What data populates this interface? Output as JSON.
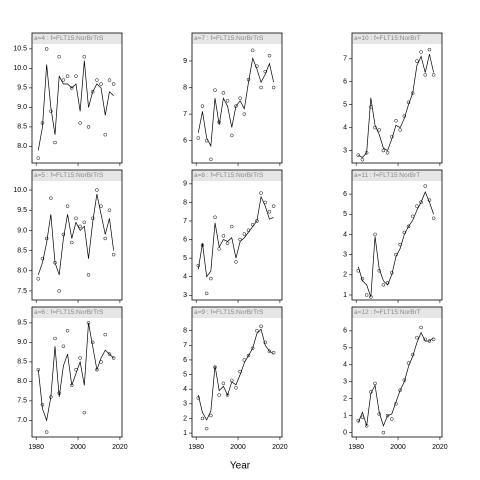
{
  "chart_data": {
    "type": "scatter",
    "xlabel": "Year",
    "xlim": [
      1978,
      2021
    ],
    "xticks": [
      1980,
      2000,
      2020
    ],
    "x": [
      1981,
      1983,
      1985,
      1987,
      1989,
      1991,
      1993,
      1995,
      1997,
      1999,
      2001,
      2003,
      2005,
      2007,
      2009,
      2011,
      2013,
      2015,
      2017
    ],
    "point_color": "#000000",
    "line_color": "#000000",
    "panels": [
      {
        "title": "a=4 : f=FLT15:NorBrTrS",
        "ylim": [
          7.6,
          10.6
        ],
        "yticks": [
          {
            "value": 8,
            "label": "8.0"
          },
          {
            "value": 8.5,
            "label": "8.5"
          },
          {
            "value": 9,
            "label": "9.0"
          },
          {
            "value": 9.5,
            "label": "9.5"
          },
          {
            "value": 10,
            "label": "10.0"
          },
          {
            "value": 10.5,
            "label": "10.5"
          }
        ],
        "points": [
          7.7,
          8.6,
          10.5,
          8.9,
          8.1,
          10.3,
          9.7,
          9.8,
          9.5,
          9.8,
          8.6,
          10.3,
          8.5,
          9.4,
          9.7,
          9.6,
          8.3,
          9.7,
          9.6
        ],
        "line": [
          7.9,
          8.5,
          10.1,
          9.0,
          8.3,
          9.8,
          9.6,
          9.6,
          9.5,
          9.6,
          8.9,
          10.2,
          9.0,
          9.4,
          9.6,
          9.5,
          8.8,
          9.4,
          9.3
        ]
      },
      {
        "title": "a=7 : f=FLT15:NorBrTrS",
        "ylim": [
          5.2,
          9.6
        ],
        "yticks": [
          6,
          7,
          8,
          9
        ],
        "points": [
          6.1,
          7.3,
          6.0,
          5.3,
          7.9,
          6.7,
          7.8,
          7.5,
          6.2,
          7.3,
          7.6,
          7.0,
          8.3,
          9.4,
          8.8,
          8.0,
          8.6,
          9.2,
          8.0
        ],
        "line": [
          6.3,
          7.1,
          6.1,
          5.8,
          7.6,
          6.6,
          7.6,
          7.3,
          6.5,
          7.3,
          7.5,
          7.2,
          8.2,
          9.1,
          8.7,
          8.2,
          8.5,
          8.9,
          8.2
        ]
      },
      {
        "title": "a=10 : f=FLT15:NorBrT",
        "ylim": [
          2.5,
          7.6
        ],
        "yticks": [
          3,
          4,
          5,
          6,
          7
        ],
        "points": [
          2.8,
          2.6,
          2.9,
          4.9,
          4.0,
          3.9,
          3.0,
          2.9,
          3.6,
          4.3,
          3.9,
          4.5,
          5.1,
          5.5,
          6.9,
          7.3,
          6.3,
          7.4,
          6.3
        ],
        "line": [
          2.8,
          2.7,
          2.9,
          5.3,
          4.1,
          3.7,
          3.1,
          3.0,
          3.5,
          4.1,
          4.0,
          4.4,
          5.0,
          5.5,
          6.7,
          7.1,
          6.4,
          7.2,
          6.4
        ]
      },
      {
        "title": "a=5 : f=FLT15:NorBrTrS",
        "ylim": [
          7.3,
          10.2
        ],
        "yticks": [
          {
            "value": 7.5,
            "label": "7.5"
          },
          {
            "value": 8,
            "label": "8.0"
          },
          {
            "value": 8.5,
            "label": "8.5"
          },
          {
            "value": 9,
            "label": "9.0"
          },
          {
            "value": 9.5,
            "label": "9.5"
          },
          {
            "value": 10,
            "label": "10.0"
          }
        ],
        "points": [
          7.8,
          8.3,
          8.8,
          9.8,
          8.2,
          7.5,
          8.9,
          9.6,
          8.7,
          9.3,
          9.1,
          9.2,
          7.9,
          9.3,
          10.0,
          9.6,
          8.8,
          9.5,
          8.4
        ],
        "line": [
          7.9,
          8.2,
          8.7,
          9.4,
          8.2,
          7.9,
          8.8,
          9.4,
          8.8,
          9.2,
          9.0,
          9.1,
          8.3,
          9.2,
          9.9,
          9.4,
          8.9,
          9.3,
          8.5
        ]
      },
      {
        "title": "a=8 : f=FLT15:NorBrTrS",
        "ylim": [
          2.8,
          9.1
        ],
        "yticks": [
          3,
          4,
          5,
          6,
          7,
          8,
          9
        ],
        "points": [
          4.6,
          5.7,
          3.1,
          3.9,
          7.2,
          5.5,
          6.2,
          5.8,
          6.7,
          4.8,
          6.0,
          6.3,
          6.5,
          6.8,
          7.0,
          8.5,
          8.0,
          7.5,
          7.8
        ],
        "line": [
          4.4,
          5.8,
          4.0,
          4.3,
          6.9,
          5.6,
          6.0,
          5.9,
          6.1,
          5.0,
          5.9,
          6.1,
          6.4,
          6.7,
          7.0,
          8.3,
          7.8,
          7.1,
          7.2
        ]
      },
      {
        "title": "a=11 : f=FLT15:NorBrT",
        "ylim": [
          0.8,
          6.6
        ],
        "yticks": [
          1,
          2,
          3,
          4,
          5,
          6
        ],
        "points": [
          2.2,
          1.8,
          1.0,
          0.9,
          4.0,
          2.2,
          1.5,
          1.6,
          2.1,
          3.0,
          3.5,
          4.1,
          4.4,
          4.9,
          5.4,
          5.6,
          6.4,
          5.7,
          4.8
        ],
        "line": [
          2.4,
          1.7,
          1.5,
          0.9,
          3.9,
          2.3,
          1.7,
          1.5,
          2.0,
          2.9,
          3.3,
          4.0,
          4.4,
          4.7,
          5.2,
          5.6,
          6.1,
          5.6,
          5.0
        ]
      },
      {
        "title": "a=6 : f=FLT15:NorBrTrS",
        "ylim": [
          6.6,
          9.6
        ],
        "yticks": [
          {
            "value": 7,
            "label": "7.0"
          },
          {
            "value": 7.5,
            "label": "7.5"
          },
          {
            "value": 8,
            "label": "8.0"
          },
          {
            "value": 8.5,
            "label": "8.5"
          },
          {
            "value": 9,
            "label": "9.0"
          },
          {
            "value": 9.5,
            "label": "9.5"
          }
        ],
        "points": [
          8.3,
          7.4,
          6.7,
          7.6,
          9.1,
          7.7,
          8.9,
          9.3,
          7.9,
          8.3,
          8.6,
          7.2,
          9.5,
          9.0,
          8.3,
          8.5,
          9.2,
          8.7,
          8.6
        ],
        "line": [
          8.3,
          7.3,
          7.0,
          7.6,
          8.9,
          7.6,
          8.4,
          8.7,
          7.9,
          8.2,
          8.5,
          7.9,
          9.5,
          8.9,
          8.3,
          8.6,
          8.8,
          8.7,
          8.6
        ]
      },
      {
        "title": "a=9 : f=FLT15:NorBrTrS",
        "ylim": [
          0.8,
          8.8
        ],
        "yticks": [
          1,
          2,
          3,
          4,
          5,
          6,
          7,
          8
        ],
        "points": [
          3.4,
          2.0,
          1.3,
          2.2,
          5.5,
          3.6,
          4.4,
          3.6,
          4.6,
          4.1,
          5.2,
          6.0,
          6.3,
          6.8,
          8.0,
          8.3,
          7.2,
          6.6,
          6.5
        ],
        "line": [
          3.6,
          2.4,
          1.9,
          2.5,
          5.6,
          3.9,
          4.2,
          3.6,
          4.5,
          4.3,
          5.0,
          5.8,
          6.3,
          6.8,
          7.8,
          8.1,
          7.0,
          6.6,
          6.4
        ]
      },
      {
        "title": "a=12 : f=FLT15:NorBrT",
        "ylim": [
          -0.2,
          6.7
        ],
        "yticks": [
          0,
          1,
          2,
          3,
          4,
          5,
          6
        ],
        "points": [
          0.7,
          0.9,
          0.4,
          2.4,
          2.9,
          1.1,
          0.0,
          1.0,
          0.8,
          1.7,
          2.5,
          3.1,
          4.1,
          4.6,
          5.6,
          6.2,
          5.5,
          5.4,
          5.5
        ],
        "line": [
          0.6,
          1.2,
          0.4,
          2.3,
          2.8,
          1.2,
          0.4,
          1.0,
          1.1,
          1.8,
          2.5,
          3.0,
          3.9,
          4.5,
          5.3,
          5.9,
          5.4,
          5.4,
          5.6
        ]
      }
    ]
  }
}
